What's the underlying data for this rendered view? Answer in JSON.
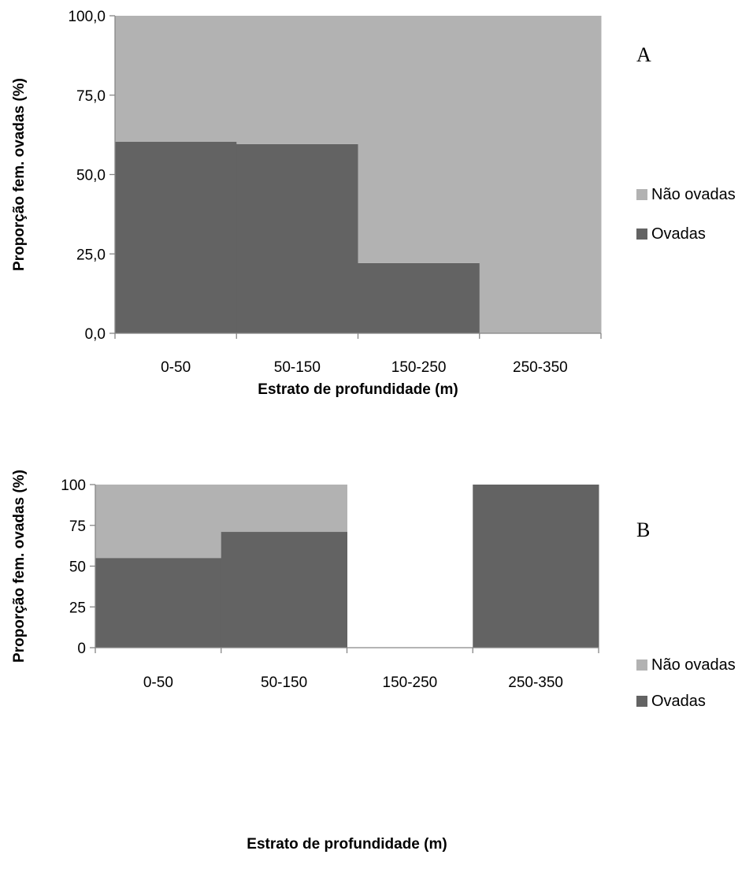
{
  "chart_data": [
    {
      "type": "bar",
      "stacked": true,
      "panel_label": "A",
      "categories": [
        "0-50",
        "50-150",
        "150-250",
        "250-350"
      ],
      "series": [
        {
          "name": "Ovadas",
          "values": [
            60.3,
            59.6,
            22.1,
            0
          ],
          "color": "#636363"
        },
        {
          "name": "Não ovadas",
          "values": [
            39.7,
            40.4,
            77.9,
            100
          ],
          "color": "#b2b2b2"
        }
      ],
      "ylim": [
        0,
        100
      ],
      "yticks": [
        0,
        25,
        50,
        75,
        100
      ],
      "ytick_labels": [
        "0,0",
        "25,0",
        "50,0",
        "75,0",
        "100,0"
      ],
      "xlabel": "Estrato de profundidade (m)",
      "ylabel": "Proporção fem. ovadas (%)",
      "legend": [
        {
          "label": "Não ovadas",
          "color": "#b2b2b2"
        },
        {
          "label": "Ovadas",
          "color": "#636363"
        }
      ],
      "legend_position": "right",
      "grid": false
    },
    {
      "type": "bar",
      "stacked": true,
      "panel_label": "B",
      "categories": [
        "0-50",
        "50-150",
        "150-250",
        "250-350"
      ],
      "series": [
        {
          "name": "Ovadas",
          "values": [
            55,
            71,
            0,
            100
          ],
          "color": "#636363"
        },
        {
          "name": "Não ovadas",
          "values": [
            45,
            29,
            0,
            0
          ],
          "color": "#b2b2b2"
        }
      ],
      "ylim": [
        0,
        100
      ],
      "yticks": [
        0,
        25,
        50,
        75,
        100
      ],
      "ytick_labels": [
        "0",
        "25",
        "50",
        "75",
        "100"
      ],
      "xlabel": "Estrato de profundidade (m)",
      "ylabel": "Proporção fem. ovadas (%)",
      "legend": [
        {
          "label": "Não ovadas",
          "color": "#b2b2b2"
        },
        {
          "label": "Ovadas",
          "color": "#636363"
        }
      ],
      "legend_position": "right",
      "grid": false
    }
  ]
}
